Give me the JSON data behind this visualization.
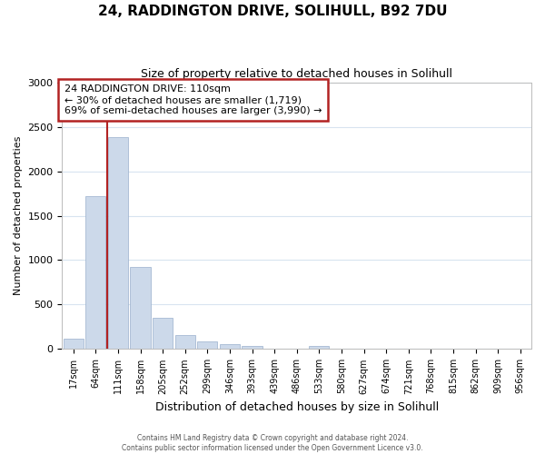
{
  "title_line1": "24, RADDINGTON DRIVE, SOLIHULL, B92 7DU",
  "title_line2": "Size of property relative to detached houses in Solihull",
  "xlabel": "Distribution of detached houses by size in Solihull",
  "ylabel": "Number of detached properties",
  "bar_labels": [
    "17sqm",
    "64sqm",
    "111sqm",
    "158sqm",
    "205sqm",
    "252sqm",
    "299sqm",
    "346sqm",
    "393sqm",
    "439sqm",
    "486sqm",
    "533sqm",
    "580sqm",
    "627sqm",
    "674sqm",
    "721sqm",
    "768sqm",
    "815sqm",
    "862sqm",
    "909sqm",
    "956sqm"
  ],
  "bar_values": [
    120,
    1720,
    2380,
    920,
    350,
    155,
    85,
    55,
    40,
    0,
    0,
    35,
    0,
    0,
    0,
    0,
    0,
    0,
    0,
    0,
    0
  ],
  "bar_color": "#ccd9ea",
  "bar_edgecolor": "#9ab0cc",
  "highlight_color": "#b22222",
  "highlight_bar_index": 2,
  "ylim": [
    0,
    3000
  ],
  "yticks": [
    0,
    500,
    1000,
    1500,
    2000,
    2500,
    3000
  ],
  "annotation_title": "24 RADDINGTON DRIVE: 110sqm",
  "annotation_line1": "← 30% of detached houses are smaller (1,719)",
  "annotation_line2": "69% of semi-detached houses are larger (3,990) →",
  "footer_line1": "Contains HM Land Registry data © Crown copyright and database right 2024.",
  "footer_line2": "Contains public sector information licensed under the Open Government Licence v3.0.",
  "bg_color": "#ffffff",
  "grid_color": "#d8e4f0",
  "annotation_box_facecolor": "#ffffff",
  "annotation_box_edgecolor": "#b22222"
}
